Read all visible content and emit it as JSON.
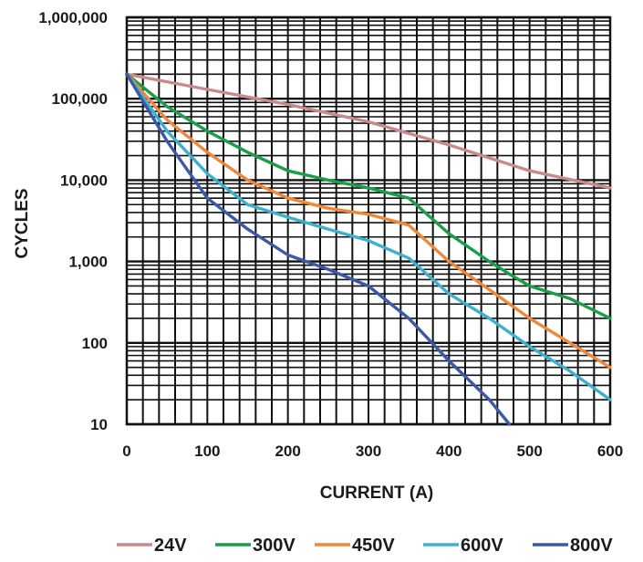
{
  "chart_data": {
    "type": "line",
    "xlabel": "CURRENT (A)",
    "ylabel": "CYCLES",
    "xlim": [
      0,
      600
    ],
    "ylim": [
      10,
      1000000
    ],
    "y_scale": "log",
    "grid": true,
    "legend_position": "bottom",
    "x_ticks": [
      "0",
      "100",
      "200",
      "300",
      "400",
      "500",
      "600"
    ],
    "y_ticks": [
      "10",
      "100",
      "1,000",
      "10,000",
      "100,000",
      "1,000,000"
    ],
    "series": [
      {
        "name": "24V",
        "color": "#c98a8e",
        "x": [
          0,
          100,
          200,
          300,
          400,
          500,
          600
        ],
        "y": [
          200000,
          130000,
          85000,
          52000,
          27000,
          13000,
          8000
        ]
      },
      {
        "name": "300V",
        "color": "#1a9e48",
        "x": [
          0,
          50,
          100,
          150,
          200,
          250,
          300,
          350,
          400,
          450,
          475,
          500,
          550,
          600
        ],
        "y": [
          200000,
          80000,
          40000,
          22000,
          13000,
          10000,
          8000,
          6000,
          2200,
          1000,
          700,
          500,
          350,
          200
        ]
      },
      {
        "name": "450V",
        "color": "#f0883a",
        "x": [
          0,
          50,
          100,
          150,
          200,
          250,
          300,
          350,
          400,
          450,
          500,
          550,
          600
        ],
        "y": [
          200000,
          55000,
          22000,
          10000,
          6000,
          4500,
          3800,
          2800,
          1000,
          450,
          200,
          100,
          50
        ]
      },
      {
        "name": "600V",
        "color": "#3eb0cf",
        "x": [
          0,
          50,
          100,
          150,
          200,
          250,
          300,
          350,
          400,
          450,
          500,
          550,
          600
        ],
        "y": [
          200000,
          40000,
          12000,
          5000,
          3500,
          2500,
          1800,
          1100,
          400,
          200,
          90,
          45,
          20
        ]
      },
      {
        "name": "800V",
        "color": "#3a59a8",
        "x": [
          0,
          50,
          100,
          150,
          200,
          250,
          300,
          350,
          400,
          450,
          475
        ],
        "y": [
          200000,
          30000,
          6000,
          2500,
          1200,
          800,
          500,
          200,
          60,
          20,
          10
        ]
      }
    ]
  }
}
